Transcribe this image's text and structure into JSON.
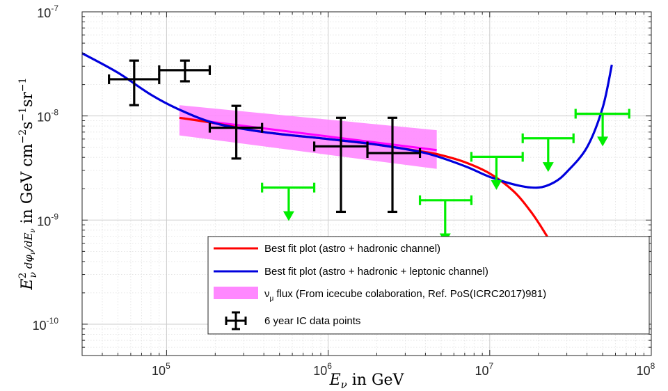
{
  "chart_data": {
    "type": "line",
    "x_scale": "log",
    "y_scale": "log",
    "xlim": [
      30000,
      100000000
    ],
    "ylim": [
      5e-11,
      1e-07
    ],
    "grid": true,
    "minor_grid": true,
    "xlabel": "E_ν in GeV",
    "ylabel": "E_ν² dφ_ν/dE_ν in GeV cm⁻² s⁻¹ sr⁻¹",
    "x_ticks": [
      {
        "base": "10",
        "exp": "5",
        "value": 100000
      },
      {
        "base": "10",
        "exp": "6",
        "value": 1000000
      },
      {
        "base": "10",
        "exp": "7",
        "value": 10000000
      },
      {
        "base": "10",
        "exp": "8",
        "value": 100000000
      }
    ],
    "y_ticks": [
      {
        "base": "10",
        "exp": "-7",
        "value": 1e-07
      },
      {
        "base": "10",
        "exp": "-8",
        "value": 1e-08
      },
      {
        "base": "10",
        "exp": "-9",
        "value": 1e-09
      },
      {
        "base": "10",
        "exp": "-10",
        "value": 1e-10
      }
    ],
    "legend_position": "bottom-right",
    "series": [
      {
        "name": "Best fit plot (astro + hadronic channel)",
        "kind": "line",
        "color": "#ff0000",
        "x": [
          120000,
          200000,
          400000,
          1000000,
          2000000,
          4000000,
          5000000,
          7000000,
          10000000,
          14000000,
          18000000,
          22000000,
          26000000,
          30000000
        ],
        "y": [
          9.6e-09,
          8.5e-09,
          7e-09,
          6e-09,
          5.3e-09,
          4.5e-09,
          4.2e-09,
          3.6e-09,
          2.8e-09,
          1.9e-09,
          1.2e-09,
          7.5e-10,
          4.8e-10,
          3.2e-10
        ]
      },
      {
        "name": "Best fit plot (astro + hadronic + leptonic channel)",
        "kind": "line",
        "color": "#0000dd",
        "x": [
          30000,
          50000,
          80000,
          120000,
          200000,
          400000,
          1000000,
          2000000,
          4000000,
          7000000,
          10000000,
          15000000,
          20000000,
          25000000,
          30000000,
          40000000,
          50000000,
          57000000
        ],
        "y": [
          4e-08,
          2.6e-08,
          1.6e-08,
          1.15e-08,
          8.5e-09,
          7e-09,
          6e-09,
          5.3e-09,
          4.4e-09,
          3.3e-09,
          2.6e-09,
          2.15e-09,
          2.05e-09,
          2.3e-09,
          2.9e-09,
          5e-09,
          1.2e-08,
          3.1e-08
        ]
      },
      {
        "name": "ν_μ flux (From icecube colaboration, Ref. PoS(ICRC2017)981)",
        "kind": "band",
        "color": "#ff88ff",
        "x": [
          120000,
          4700000
        ],
        "y_upper": [
          1.27e-08,
          7.3e-09
        ],
        "y_lower": [
          6.5e-09,
          3.1e-09
        ],
        "central_line_color": "#ff00ff",
        "central": [
          9.6e-09,
          4.7e-09
        ]
      },
      {
        "name": "6 year IC data points",
        "kind": "errorbar",
        "color": "#000000",
        "points": [
          {
            "x": 63000,
            "y": 2.25e-08,
            "xlo": 44000,
            "xhi": 90000,
            "ylo": 1.27e-08,
            "yhi": 3.4e-08
          },
          {
            "x": 130000,
            "y": 2.75e-08,
            "xlo": 90000,
            "xhi": 185000,
            "ylo": 2.15e-08,
            "yhi": 3.4e-08
          },
          {
            "x": 270000,
            "y": 7.7e-09,
            "xlo": 185000,
            "xhi": 390000,
            "ylo": 3.9e-09,
            "yhi": 1.25e-08
          },
          {
            "x": 1200000,
            "y": 5.1e-09,
            "xlo": 820000,
            "xhi": 1750000,
            "ylo": 1.2e-09,
            "yhi": 9.6e-09
          },
          {
            "x": 2500000,
            "y": 4.4e-09,
            "xlo": 1750000,
            "xhi": 3700000,
            "ylo": 1.2e-09,
            "yhi": 9.6e-09
          }
        ]
      },
      {
        "name": "upper limits",
        "kind": "upper_limit",
        "color": "#00ee00",
        "points": [
          {
            "x": 570000,
            "y": 2.05e-09,
            "xlo": 390000,
            "xhi": 820000,
            "tip": 9.8e-10
          },
          {
            "x": 5300000,
            "y": 1.55e-09,
            "xlo": 3700000,
            "xhi": 7700000,
            "tip": 6e-10
          },
          {
            "x": 11000000,
            "y": 4.05e-09,
            "xlo": 7700000,
            "xhi": 16000000,
            "tip": 1.95e-09
          },
          {
            "x": 23000000,
            "y": 6.1e-09,
            "xlo": 16000000,
            "xhi": 33000000,
            "tip": 2.9e-09
          },
          {
            "x": 50000000,
            "y": 1.05e-08,
            "xlo": 34000000,
            "xhi": 73000000,
            "tip": 5.1e-09
          }
        ]
      }
    ],
    "legend": [
      {
        "label": "Best fit plot (astro + hadronic channel)",
        "symbol": "line",
        "color": "#ff0000"
      },
      {
        "label": "Best fit plot (astro + hadronic + leptonic channel)",
        "symbol": "line",
        "color": "#0000dd"
      },
      {
        "label": "ν",
        "sub": "μ",
        "label_rest": " flux (From icecube colaboration, Ref. PoS(ICRC2017)981)",
        "symbol": "band",
        "color": "#ff88ff"
      },
      {
        "label": "6 year IC data points",
        "symbol": "errorbar",
        "color": "#000000"
      }
    ]
  }
}
